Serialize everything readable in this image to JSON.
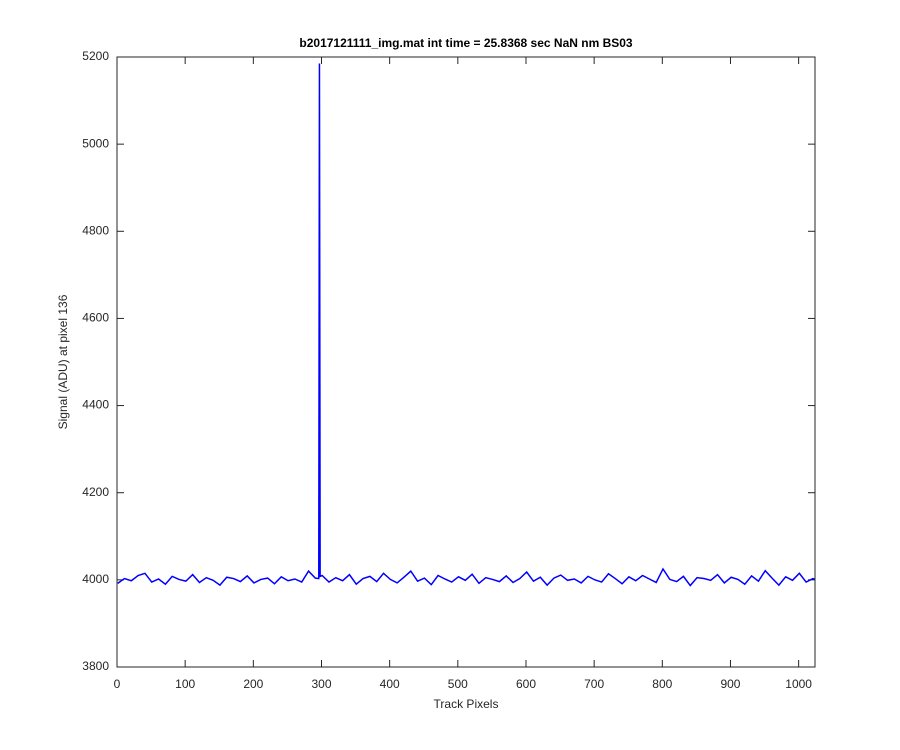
{
  "chart_data": {
    "type": "line",
    "title": "b2017121111_img.mat int time = 25.8368 sec  NaN nm BS03",
    "x_label": "Track Pixels",
    "y_label": "Signal (ADU) at pixel 136",
    "xlim": [
      0,
      1024
    ],
    "ylim": [
      3800,
      5200
    ],
    "xticks": [
      0,
      100,
      200,
      300,
      400,
      500,
      600,
      700,
      800,
      900,
      1000
    ],
    "yticks": [
      3800,
      4000,
      4200,
      4400,
      4600,
      4800,
      5000,
      5200
    ],
    "x": [
      1,
      11,
      21,
      31,
      41,
      51,
      61,
      71,
      81,
      91,
      101,
      111,
      121,
      131,
      141,
      151,
      161,
      171,
      181,
      191,
      201,
      211,
      221,
      231,
      241,
      251,
      261,
      271,
      281,
      291,
      296,
      297,
      298,
      301,
      311,
      321,
      331,
      341,
      351,
      361,
      371,
      381,
      391,
      401,
      411,
      421,
      431,
      441,
      451,
      461,
      471,
      481,
      491,
      501,
      511,
      521,
      531,
      541,
      551,
      561,
      571,
      581,
      591,
      601,
      611,
      621,
      631,
      641,
      651,
      661,
      671,
      681,
      691,
      701,
      711,
      721,
      731,
      741,
      751,
      761,
      771,
      781,
      791,
      801,
      811,
      821,
      831,
      841,
      851,
      861,
      871,
      881,
      891,
      901,
      911,
      921,
      931,
      941,
      951,
      961,
      971,
      981,
      991,
      1001,
      1011,
      1021,
      1024
    ],
    "series": [
      {
        "color": "#0000ff",
        "values": [
          3992,
          4003,
          3998,
          4010,
          4015,
          3995,
          4002,
          3990,
          4008,
          4001,
          3997,
          4012,
          3994,
          4005,
          3999,
          3988,
          4006,
          4003,
          3996,
          4009,
          3993,
          4001,
          4004,
          3991,
          4007,
          3998,
          4002,
          3995,
          4020,
          4004,
          4003,
          5185,
          4008,
          4010,
          3995,
          4005,
          3998,
          4012,
          3990,
          4003,
          4008,
          3996,
          4015,
          4001,
          3993,
          4006,
          4020,
          3997,
          4004,
          3989,
          4010,
          4002,
          3995,
          4007,
          3999,
          4013,
          3992,
          4005,
          4001,
          3996,
          4009,
          3994,
          4003,
          4018,
          3997,
          4006,
          3988,
          4004,
          4011,
          3999,
          4002,
          3993,
          4008,
          4000,
          3995,
          4014,
          4003,
          3991,
          4007,
          3998,
          4010,
          4002,
          3994,
          4025,
          4001,
          3996,
          4008,
          3987,
          4005,
          4003,
          3999,
          4012,
          3993,
          4006,
          4001,
          3990,
          4009,
          3997,
          4021,
          4004,
          3988,
          4007,
          3999,
          4015,
          3995,
          4003,
          4001
        ]
      }
    ]
  }
}
